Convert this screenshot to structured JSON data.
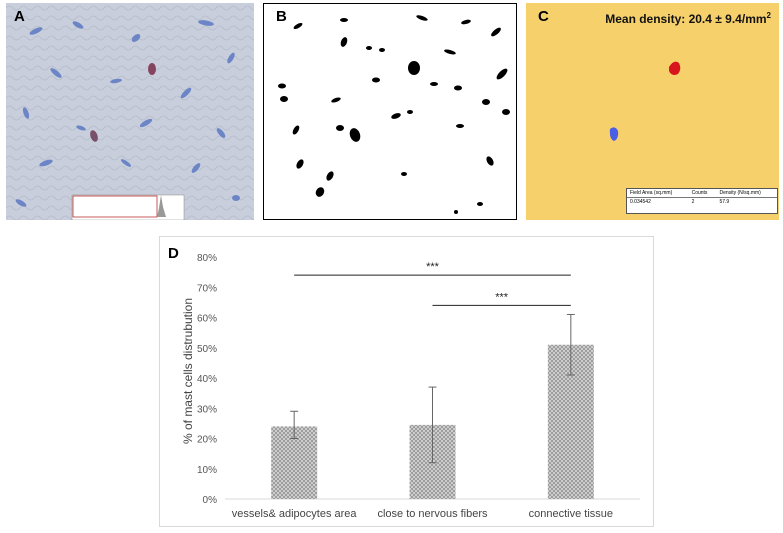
{
  "panels": {
    "a": {
      "letter": "A"
    },
    "b": {
      "letter": "B"
    },
    "c": {
      "letter": "C",
      "mean_density_text": "Mean density: 20.4 ± 9.4/mm",
      "mean_density_sup": "2",
      "table_headers": [
        "Field Area (sq.mm)",
        "Counts",
        "Density (N/sq.mm)"
      ],
      "table_row": [
        "0.034542",
        "2",
        "57.9"
      ]
    },
    "d": {
      "letter": "D"
    }
  },
  "chart_data": {
    "type": "bar",
    "categories": [
      "vessels& adipocytes area",
      "close to nervous fibers",
      "connective tissue"
    ],
    "values": [
      24,
      24.5,
      51
    ],
    "error_low": [
      20,
      12,
      41
    ],
    "error_high": [
      29,
      37,
      61
    ],
    "ylabel": "% of mast cells distrubution",
    "xlabel": "",
    "ylim": [
      0,
      80
    ],
    "yticks": [
      "0%",
      "10%",
      "20%",
      "30%",
      "40%",
      "50%",
      "60%",
      "70%",
      "80%"
    ],
    "grid": false,
    "bar_pattern": "crosshatch-grey",
    "significance": [
      {
        "from": 0,
        "to": 2,
        "label": "***",
        "y": 74
      },
      {
        "from": 1,
        "to": 2,
        "label": "***",
        "y": 64
      }
    ]
  }
}
